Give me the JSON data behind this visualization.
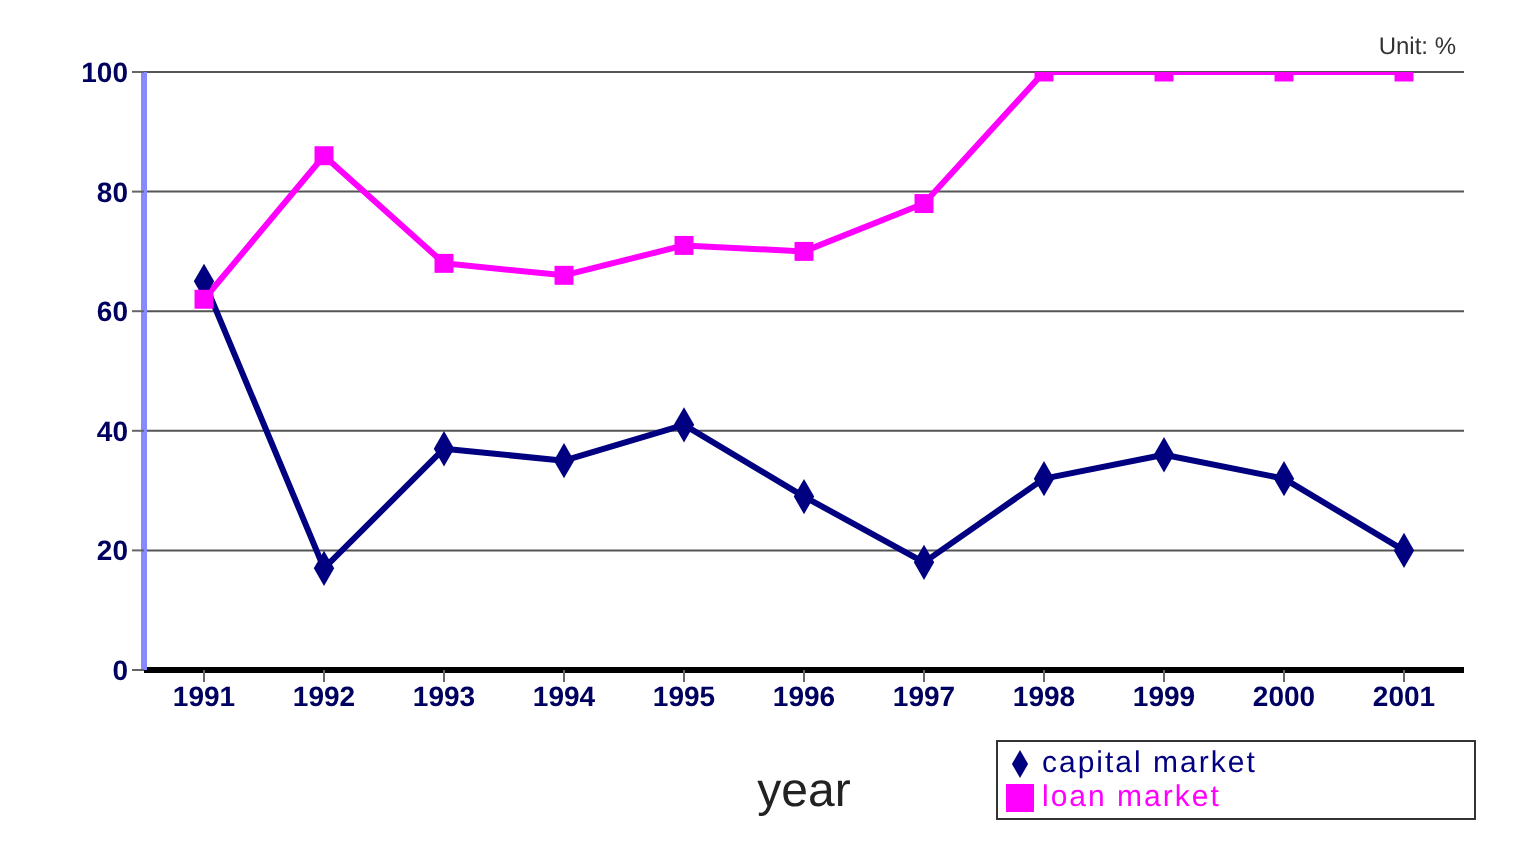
{
  "chart_data": {
    "type": "line",
    "xlabel": "year",
    "annotations": [
      "Unit: %"
    ],
    "categories": [
      "1991",
      "1992",
      "1993",
      "1994",
      "1995",
      "1996",
      "1997",
      "1998",
      "1999",
      "2000",
      "2001"
    ],
    "series": [
      {
        "name": "capital market",
        "color": "#000080",
        "marker": "diamond",
        "values": [
          65,
          17,
          37,
          35,
          41,
          29,
          18,
          32,
          36,
          32,
          20
        ]
      },
      {
        "name": "loan market",
        "color": "#ff00ff",
        "marker": "square",
        "values": [
          62,
          86,
          68,
          66,
          71,
          70,
          78,
          100,
          100,
          100,
          100
        ]
      }
    ],
    "ylim": [
      0,
      100
    ],
    "yticks": [
      0,
      20,
      40,
      60,
      80,
      100
    ],
    "grid": "y",
    "legend": "bottom right"
  }
}
